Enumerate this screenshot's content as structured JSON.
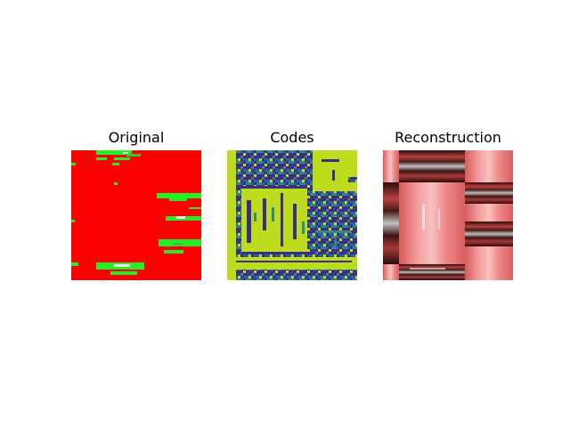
{
  "panels": [
    {
      "title": "Original"
    },
    {
      "title": "Codes"
    },
    {
      "title": "Reconstruction"
    }
  ],
  "colors": {
    "original_base": "#ff0000",
    "original_highlight": "#22ee22",
    "codes_yellow": "#bfdc1c",
    "codes_navy": "#3b2e86",
    "codes_teal": "#2b8a8a",
    "recon_light": "#f08080",
    "recon_dark": "#3a1414"
  }
}
